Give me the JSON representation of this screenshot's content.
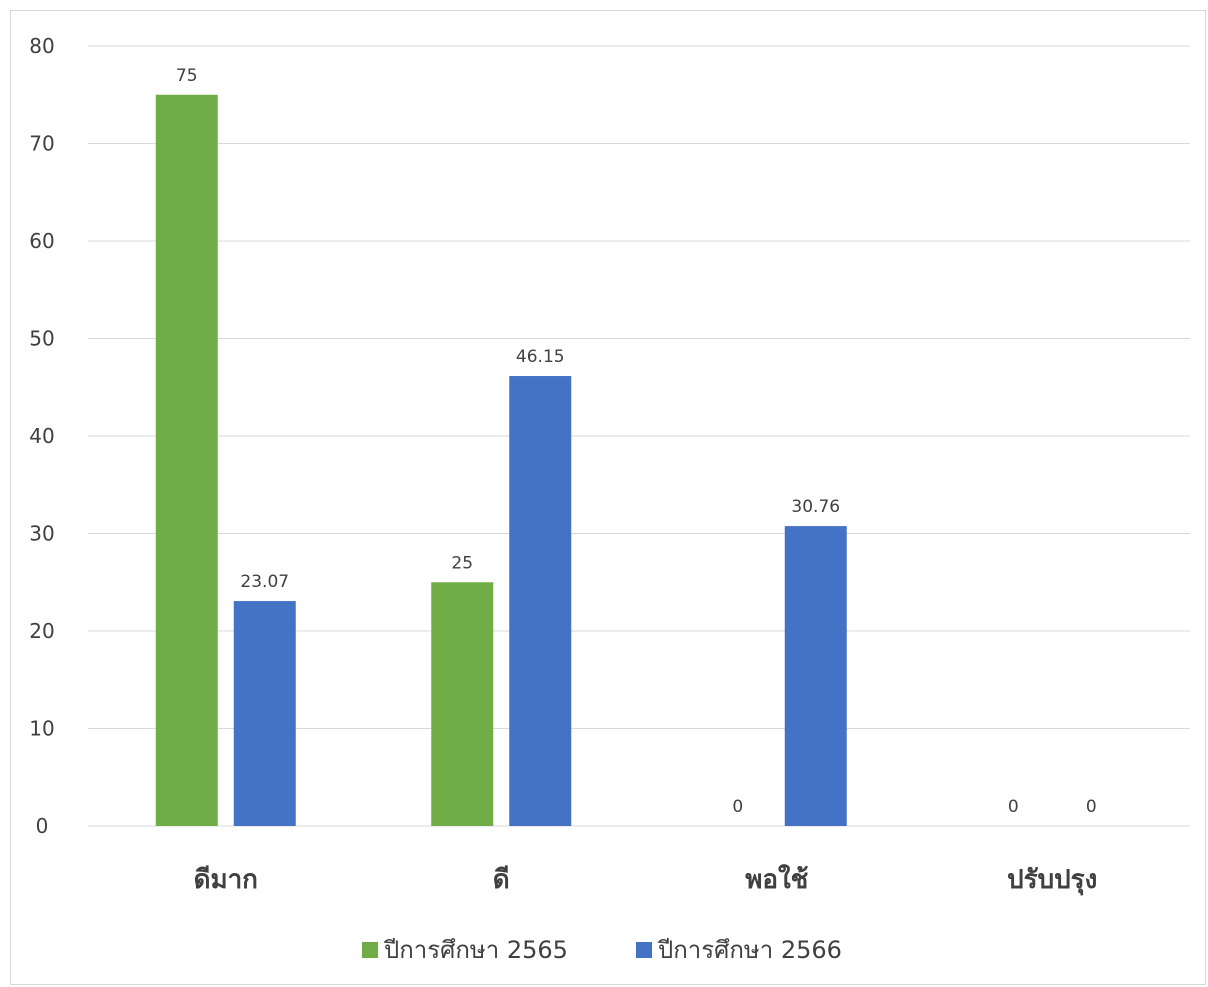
{
  "chart_data": {
    "type": "bar",
    "categories": [
      "ดีมาก",
      "ดี",
      "พอใช้",
      "ปรับปรุง"
    ],
    "series": [
      {
        "name": "ปีการศึกษา 2565",
        "values": [
          75,
          25,
          0,
          0
        ],
        "color": "#70ad47"
      },
      {
        "name": "ปีการศึกษา 2566",
        "values": [
          23.07,
          46.15,
          30.76,
          0
        ],
        "color": "#4472c4"
      }
    ],
    "data_labels": [
      [
        "75",
        "25",
        "0",
        "0"
      ],
      [
        "23.07",
        "46.15",
        "30.76",
        "0"
      ]
    ],
    "ylim": [
      0,
      80
    ],
    "yticks": [
      0,
      10,
      20,
      30,
      40,
      50,
      60,
      70,
      80
    ],
    "grid": true,
    "legend_position": "bottom"
  }
}
